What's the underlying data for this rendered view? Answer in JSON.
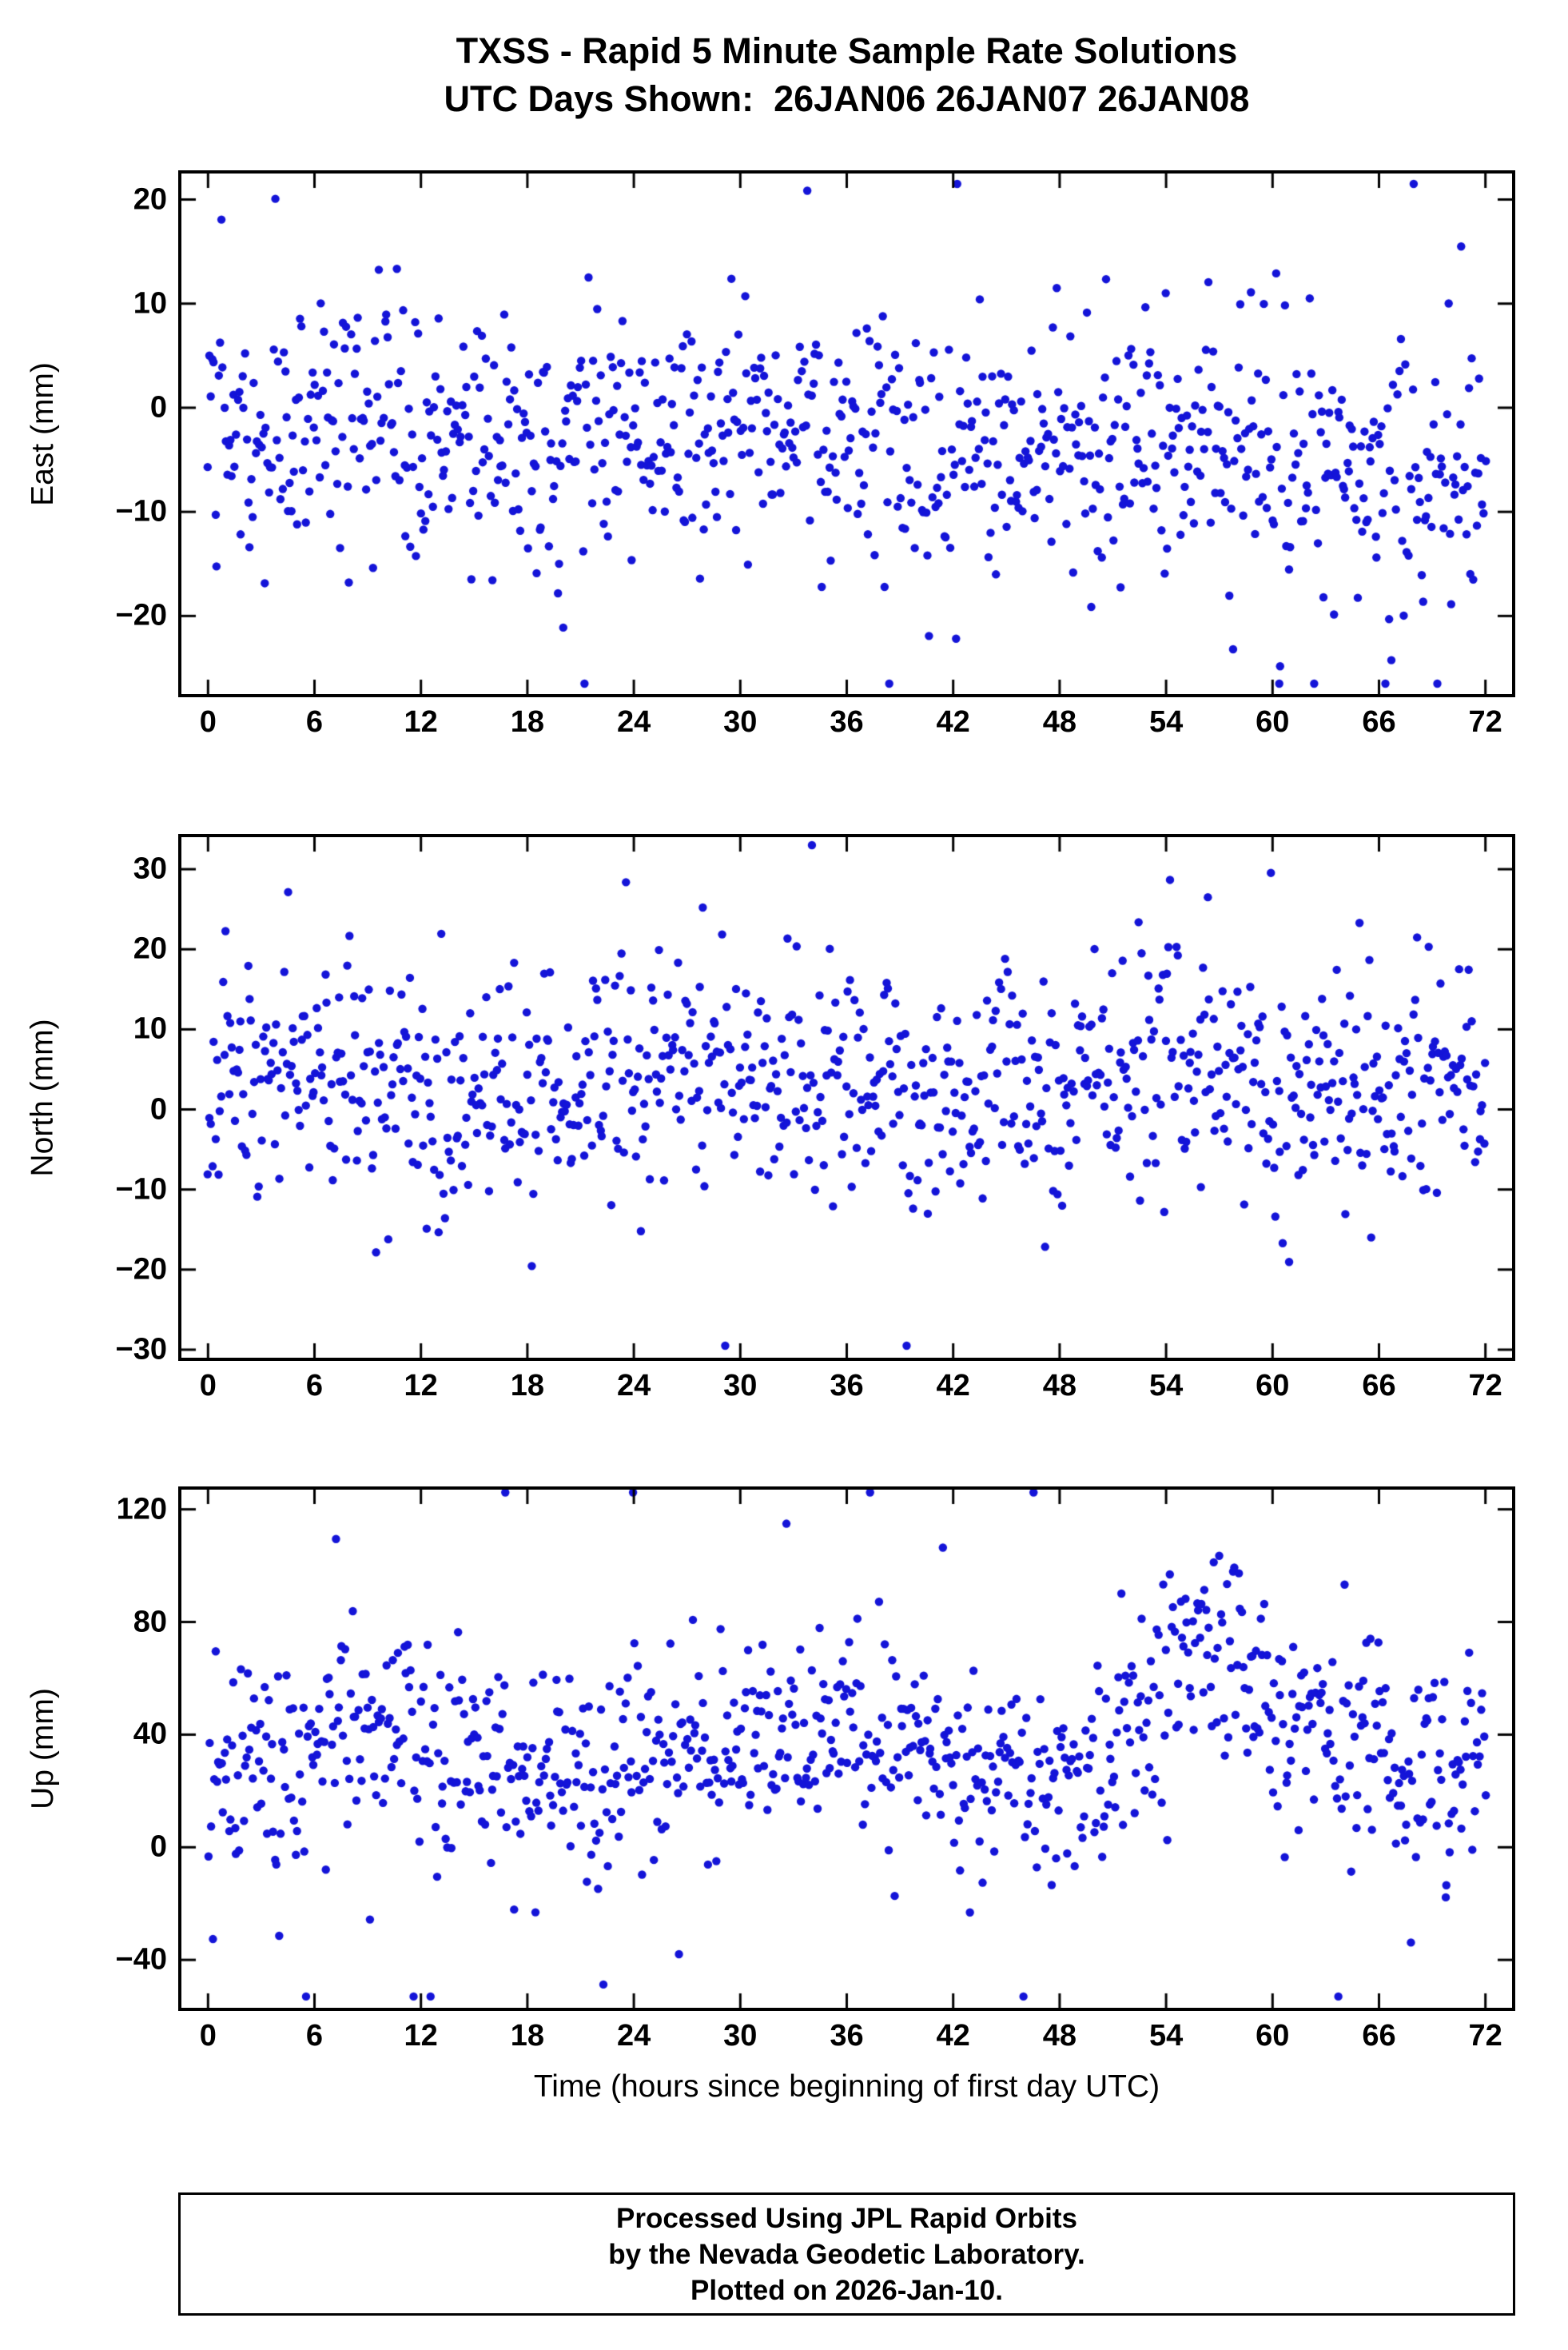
{
  "title": "TXSS - Rapid 5 Minute Sample Rate Solutions",
  "subtitle": "UTC Days Shown:  26JAN06 26JAN07 26JAN08",
  "xlabel": "Time (hours since beginning of first day UTC)",
  "footer": {
    "line1": "Processed Using JPL Rapid Orbits",
    "line2": "by the Nevada Geodetic Laboratory.",
    "line3": "Plotted on 2026-Jan-10."
  },
  "style": {
    "point_color": "#1414d8",
    "point_radius": 5.2,
    "tick_len": 18,
    "tick_width": 3,
    "axis_color": "#000000"
  },
  "chart_data": [
    {
      "type": "scatter",
      "name": "east",
      "ylabel": "East (mm)",
      "xlim": [
        -1.5,
        73.5
      ],
      "ylim": [
        -27.5,
        22.5
      ],
      "xticks": [
        0,
        6,
        12,
        18,
        24,
        30,
        36,
        42,
        48,
        54,
        60,
        66,
        72
      ],
      "yticks": [
        -20,
        -10,
        0,
        10,
        20
      ],
      "x_range_hours": [
        0,
        72
      ],
      "sample_interval_min": 5,
      "gen": {
        "seed": 101,
        "n": 860,
        "mean": -3.5,
        "trend": -0.06,
        "std": 6.3,
        "amp1": 1.5,
        "period1": 24,
        "phase1": 0.0,
        "outlierP": 0.035,
        "clip": [
          -26.5,
          21.5
        ]
      }
    },
    {
      "type": "scatter",
      "name": "north",
      "ylabel": "North (mm)",
      "xlim": [
        -1.5,
        73.5
      ],
      "ylim": [
        -31,
        34
      ],
      "xticks": [
        0,
        6,
        12,
        18,
        24,
        30,
        36,
        42,
        48,
        54,
        60,
        66,
        72
      ],
      "yticks": [
        -30,
        -20,
        -10,
        0,
        10,
        20,
        30
      ],
      "x_range_hours": [
        0,
        72
      ],
      "sample_interval_min": 5,
      "gen": {
        "seed": 202,
        "n": 860,
        "mean": 3.5,
        "trend": 0.0,
        "std": 7.2,
        "amp1": 2.0,
        "period1": 24,
        "phase1": 0.5,
        "outlierP": 0.035,
        "clip": [
          -29.5,
          33.0
        ]
      }
    },
    {
      "type": "scatter",
      "name": "up",
      "ylabel": "Up (mm)",
      "xlim": [
        -1.5,
        73.5
      ],
      "ylim": [
        -57,
        127
      ],
      "xticks": [
        0,
        6,
        12,
        18,
        24,
        30,
        36,
        42,
        48,
        54,
        60,
        66,
        72
      ],
      "yticks": [
        -40,
        0,
        40,
        80,
        120
      ],
      "x_range_hours": [
        0,
        72
      ],
      "sample_interval_min": 5,
      "gen": {
        "seed": 303,
        "n": 860,
        "mean": 33,
        "trend": 0.05,
        "std": 19,
        "amp1": 8,
        "period1": 24,
        "phase1": 5.24,
        "outlierP": 0.03,
        "bump": {
          "x": 56,
          "w": 2.2,
          "a": 45
        },
        "clip": [
          -53,
          126
        ]
      }
    }
  ]
}
